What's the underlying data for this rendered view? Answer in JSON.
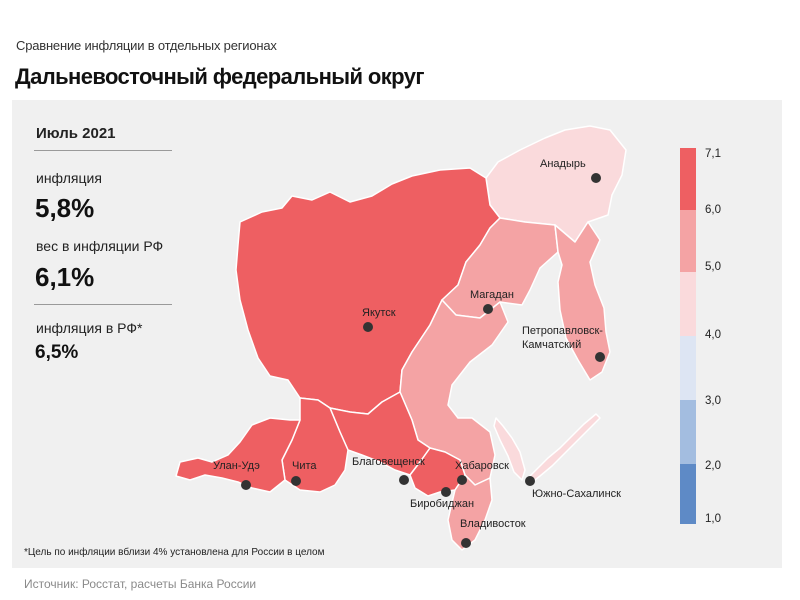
{
  "header": {
    "subtitle": "Сравнение инфляции в отдельных регионах",
    "title": "Дальневосточный федеральный округ"
  },
  "stats": {
    "period": "Июль 2021",
    "inflation_label": "инфляция",
    "inflation_value": "5,8%",
    "weight_label": "вес в инфляции РФ",
    "weight_value": "6,1%",
    "rf_label": "инфляция в РФ*",
    "rf_value": "6,5%"
  },
  "footnote": "*Цель по инфляции вблизи 4% установлена для России в целом",
  "source": "Источник: Росстат, расчеты Банка России",
  "cities": {
    "anadyr": "Анадырь",
    "yakutsk": "Якутск",
    "magadan": "Магадан",
    "petropavlovsk_1": "Петропавловск-",
    "petropavlovsk_2": "Камчатский",
    "ulan_ude": "Улан-Удэ",
    "chita": "Чита",
    "blagoveshchensk": "Благовещенск",
    "khabarovsk": "Хабаровск",
    "birobidzhan": "Биробиджан",
    "yuzhno_sakhalinsk": "Южно-Сахалинск",
    "vladivostok": "Владивосток"
  },
  "scale": {
    "ticks": [
      "7,1",
      "6,0",
      "5,0",
      "4,0",
      "3,0",
      "2,0",
      "1,0"
    ],
    "colors": [
      "#ee5f62",
      "#f4a3a4",
      "#fadadc",
      "#dde5f3",
      "#a3bde0",
      "#5e8ac6"
    ]
  },
  "regions": {
    "yakutia": "#ee5f62",
    "chukotka": "#fadadc",
    "magadan": "#f4a3a4",
    "kamchatka": "#f4a3a4",
    "buryatia": "#ee5f62",
    "zabaykalsky": "#ee5f62",
    "amur": "#ee5f62",
    "khabarovsk": "#f4a3a4",
    "jewish": "#ee5f62",
    "primorye": "#f4a3a4",
    "sakhalin": "#fadadc"
  }
}
